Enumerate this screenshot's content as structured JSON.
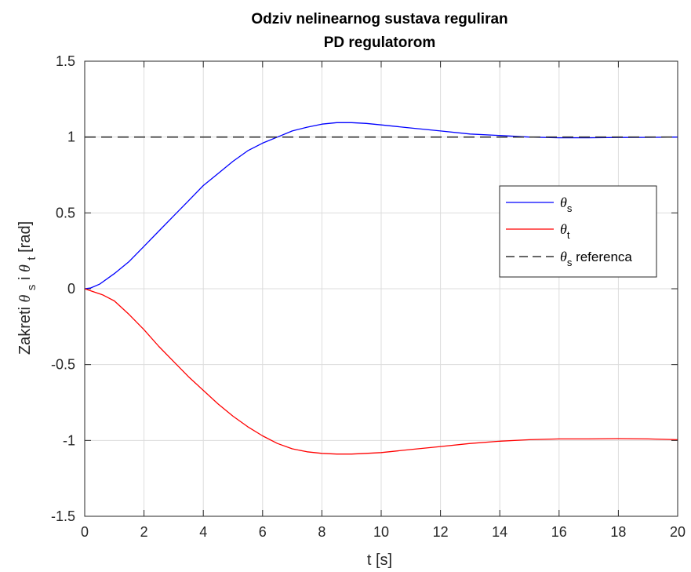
{
  "chart_data": {
    "type": "line",
    "title_lines": [
      "Odziv nelinearnog sustava reguliran",
      "PD regulatorom"
    ],
    "xlabel": "t [s]",
    "ylabel": {
      "prefix": "Zakreti ",
      "theta": "θ",
      "sub_s": "s",
      "conj": " i ",
      "sub_t": "t",
      "unit": " [rad]"
    },
    "xlim": [
      0,
      20
    ],
    "ylim": [
      -1.5,
      1.5
    ],
    "xticks": [
      0,
      2,
      4,
      6,
      8,
      10,
      12,
      14,
      16,
      18,
      20
    ],
    "yticks": [
      -1.5,
      -1,
      -0.5,
      0,
      0.5,
      1,
      1.5
    ],
    "xtick_labels": [
      "0",
      "2",
      "4",
      "6",
      "8",
      "10",
      "12",
      "14",
      "16",
      "18",
      "20"
    ],
    "ytick_labels": [
      "-1.5",
      "-1",
      "-0.5",
      "0",
      "0.5",
      "1",
      "1.5"
    ],
    "grid": true,
    "legend_position": "right",
    "series": [
      {
        "name": "θs",
        "legend_main": "θ",
        "legend_sub": "s",
        "legend_suffix": "",
        "color": "#0000ff",
        "dash": "solid",
        "x": [
          0,
          0.2,
          0.5,
          1,
          1.5,
          2,
          2.5,
          3,
          3.5,
          4,
          4.5,
          5,
          5.5,
          6,
          6.5,
          7,
          7.5,
          8,
          8.5,
          9,
          9.5,
          10,
          11,
          12,
          13,
          14,
          15,
          16,
          17,
          18,
          19,
          20
        ],
        "y": [
          0,
          0.005,
          0.03,
          0.1,
          0.18,
          0.28,
          0.38,
          0.48,
          0.58,
          0.68,
          0.76,
          0.84,
          0.91,
          0.96,
          1.0,
          1.04,
          1.065,
          1.085,
          1.095,
          1.095,
          1.09,
          1.08,
          1.06,
          1.04,
          1.02,
          1.01,
          1.0,
          0.995,
          0.995,
          0.997,
          0.998,
          1.0
        ]
      },
      {
        "name": "θt",
        "legend_main": "θ",
        "legend_sub": "t",
        "legend_suffix": "",
        "color": "#ff0000",
        "dash": "solid",
        "x": [
          0,
          0.3,
          0.6,
          1,
          1.5,
          2,
          2.5,
          3,
          3.5,
          4,
          4.5,
          5,
          5.5,
          6,
          6.5,
          7,
          7.5,
          8,
          8.5,
          9,
          9.5,
          10,
          11,
          12,
          13,
          14,
          15,
          16,
          17,
          18,
          19,
          20
        ],
        "y": [
          0,
          -0.02,
          -0.04,
          -0.08,
          -0.17,
          -0.27,
          -0.38,
          -0.48,
          -0.58,
          -0.67,
          -0.76,
          -0.84,
          -0.91,
          -0.97,
          -1.02,
          -1.055,
          -1.075,
          -1.085,
          -1.09,
          -1.09,
          -1.085,
          -1.08,
          -1.06,
          -1.04,
          -1.02,
          -1.005,
          -0.995,
          -0.99,
          -0.99,
          -0.988,
          -0.99,
          -0.995
        ]
      },
      {
        "name": "θs referenca",
        "legend_main": "θ",
        "legend_sub": "s",
        "legend_suffix": " referenca",
        "color": "#333333",
        "dash": "dashed",
        "x": [
          0,
          20
        ],
        "y": [
          1,
          1
        ]
      }
    ]
  }
}
